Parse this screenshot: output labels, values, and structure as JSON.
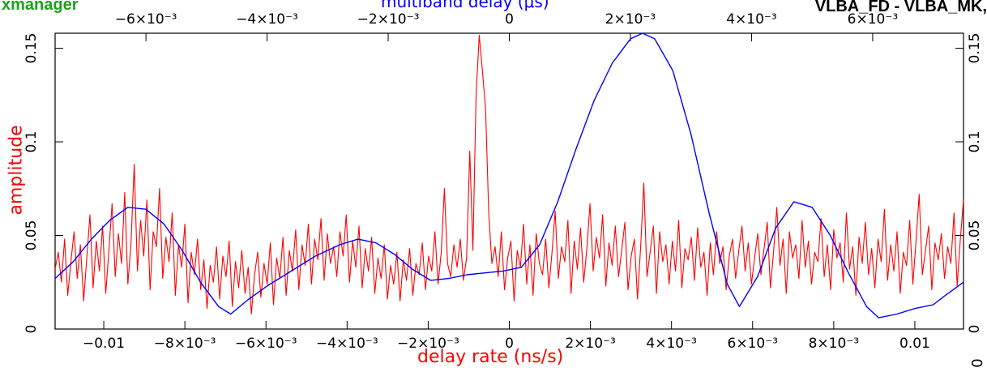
{
  "header": {
    "app_title": "xmanager",
    "baseline_title": "VLBA_FD - VLBA_MK,"
  },
  "chart_data": {
    "type": "line",
    "xlabel": "delay rate (ns/s)",
    "ylabel": "amplitude",
    "top_xlabel": "multiband delay (μs)",
    "xlim": [
      -0.0112,
      0.0112
    ],
    "ylim": [
      0,
      0.158
    ],
    "top_xlim": [
      -0.0075,
      0.0075
    ],
    "x_ticks": [
      {
        "value": -0.01,
        "label": "−0.01"
      },
      {
        "value": -0.008,
        "label": "−8×10⁻³"
      },
      {
        "value": -0.006,
        "label": "−6×10⁻³"
      },
      {
        "value": -0.004,
        "label": "−4×10⁻³"
      },
      {
        "value": -0.002,
        "label": "−2×10⁻³"
      },
      {
        "value": 0,
        "label": "0"
      },
      {
        "value": 0.002,
        "label": "2×10⁻³"
      },
      {
        "value": 0.004,
        "label": "4×10⁻³"
      },
      {
        "value": 0.006,
        "label": "6×10⁻³"
      },
      {
        "value": 0.008,
        "label": "8×10⁻³"
      },
      {
        "value": 0.01,
        "label": "0.01"
      }
    ],
    "top_ticks": [
      {
        "value": -0.006,
        "label": "−6×10⁻³"
      },
      {
        "value": -0.004,
        "label": "−4×10⁻³"
      },
      {
        "value": -0.002,
        "label": "−2×10⁻³"
      },
      {
        "value": 0,
        "label": "0"
      },
      {
        "value": 0.002,
        "label": "2×10⁻³"
      },
      {
        "value": 0.004,
        "label": "4×10⁻³"
      },
      {
        "value": 0.006,
        "label": "6×10⁻³"
      }
    ],
    "y_ticks": [
      {
        "value": 0,
        "label": "0"
      },
      {
        "value": 0.05,
        "label": "0.05"
      },
      {
        "value": 0.1,
        "label": "0.1"
      },
      {
        "value": 0.15,
        "label": "0.15"
      }
    ],
    "right_extra_label": "0",
    "series": [
      {
        "color": "#ff0000",
        "axis": "bottom",
        "x_start": -0.0112,
        "x_end": 0.0112,
        "values": [
          0.032,
          0.041,
          0.025,
          0.048,
          0.018,
          0.036,
          0.052,
          0.027,
          0.045,
          0.015,
          0.038,
          0.061,
          0.022,
          0.047,
          0.031,
          0.055,
          0.019,
          0.042,
          0.067,
          0.028,
          0.051,
          0.035,
          0.073,
          0.024,
          0.046,
          0.088,
          0.031,
          0.058,
          0.039,
          0.069,
          0.021,
          0.052,
          0.044,
          0.075,
          0.027,
          0.049,
          0.036,
          0.062,
          0.018,
          0.045,
          0.033,
          0.056,
          0.014,
          0.041,
          0.029,
          0.048,
          0.021,
          0.037,
          0.011,
          0.034,
          0.025,
          0.044,
          0.016,
          0.039,
          0.028,
          0.047,
          0.012,
          0.036,
          0.022,
          0.042,
          0.019,
          0.033,
          0.008,
          0.029,
          0.041,
          0.017,
          0.035,
          0.024,
          0.046,
          0.013,
          0.038,
          0.027,
          0.049,
          0.018,
          0.042,
          0.031,
          0.053,
          0.021,
          0.045,
          0.034,
          0.056,
          0.024,
          0.048,
          0.037,
          0.059,
          0.026,
          0.051,
          0.035,
          0.044,
          0.028,
          0.052,
          0.039,
          0.061,
          0.025,
          0.047,
          0.033,
          0.055,
          0.022,
          0.043,
          0.031,
          0.049,
          0.019,
          0.038,
          0.027,
          0.045,
          0.016,
          0.034,
          0.024,
          0.041,
          0.015,
          0.037,
          0.026,
          0.043,
          0.018,
          0.035,
          0.029,
          0.046,
          0.021,
          0.039,
          0.031,
          0.052,
          0.024,
          0.041,
          0.075,
          0.035,
          0.028,
          0.045,
          0.033,
          0.048,
          0.026,
          0.038,
          0.095,
          0.042,
          0.125,
          0.157,
          0.138,
          0.118,
          0.062,
          0.035,
          0.044,
          0.028,
          0.052,
          0.021,
          0.038,
          0.047,
          0.015,
          0.042,
          0.033,
          0.056,
          0.024,
          0.045,
          0.018,
          0.051,
          0.035,
          0.029,
          0.048,
          0.022,
          0.041,
          0.063,
          0.027,
          0.044,
          0.036,
          0.058,
          0.019,
          0.047,
          0.032,
          0.054,
          0.025,
          0.043,
          0.067,
          0.031,
          0.049,
          0.038,
          0.061,
          0.023,
          0.046,
          0.034,
          0.055,
          0.028,
          0.042,
          0.057,
          0.021,
          0.039,
          0.048,
          0.016,
          0.044,
          0.078,
          0.028,
          0.041,
          0.055,
          0.019,
          0.052,
          0.036,
          0.045,
          0.024,
          0.047,
          0.031,
          0.058,
          0.022,
          0.043,
          0.037,
          0.049,
          0.026,
          0.054,
          0.033,
          0.041,
          0.018,
          0.046,
          0.029,
          0.052,
          0.035,
          0.044,
          0.021,
          0.039,
          0.048,
          0.027,
          0.042,
          0.055,
          0.031,
          0.046,
          0.024,
          0.038,
          0.051,
          0.029,
          0.043,
          0.057,
          0.022,
          0.041,
          0.065,
          0.034,
          0.048,
          0.019,
          0.052,
          0.038,
          0.045,
          0.027,
          0.058,
          0.033,
          0.047,
          0.024,
          0.041,
          0.036,
          0.059,
          0.028,
          0.045,
          0.021,
          0.053,
          0.038,
          0.046,
          0.025,
          0.062,
          0.032,
          0.044,
          0.018,
          0.049,
          0.035,
          0.057,
          0.029,
          0.043,
          0.022,
          0.048,
          0.036,
          0.064,
          0.026,
          0.045,
          0.031,
          0.052,
          0.019,
          0.041,
          0.034,
          0.058,
          0.024,
          0.047,
          0.072,
          0.029,
          0.042,
          0.055,
          0.021,
          0.046,
          0.037,
          0.051,
          0.027,
          0.044,
          0.035,
          0.062,
          0.023,
          0.048,
          0.069
        ]
      },
      {
        "color": "#0000ff",
        "axis": "top",
        "points": [
          [
            -0.0075,
            0.027
          ],
          [
            -0.0072,
            0.036
          ],
          [
            -0.0069,
            0.048
          ],
          [
            -0.0066,
            0.058
          ],
          [
            -0.0063,
            0.065
          ],
          [
            -0.006,
            0.064
          ],
          [
            -0.0057,
            0.056
          ],
          [
            -0.0054,
            0.042
          ],
          [
            -0.0051,
            0.025
          ],
          [
            -0.0048,
            0.012
          ],
          [
            -0.0046,
            0.008
          ],
          [
            -0.0043,
            0.016
          ],
          [
            -0.004,
            0.023
          ],
          [
            -0.0036,
            0.031
          ],
          [
            -0.0032,
            0.039
          ],
          [
            -0.0028,
            0.045
          ],
          [
            -0.0025,
            0.048
          ],
          [
            -0.0022,
            0.046
          ],
          [
            -0.0019,
            0.04
          ],
          [
            -0.0016,
            0.032
          ],
          [
            -0.0013,
            0.026
          ],
          [
            -0.001,
            0.027
          ],
          [
            -0.0007,
            0.029
          ],
          [
            -0.0004,
            0.03
          ],
          [
            -0.0001,
            0.031
          ],
          [
            0.0002,
            0.033
          ],
          [
            0.0005,
            0.045
          ],
          [
            0.0008,
            0.068
          ],
          [
            0.0011,
            0.096
          ],
          [
            0.0014,
            0.122
          ],
          [
            0.0017,
            0.142
          ],
          [
            0.002,
            0.155
          ],
          [
            0.0022,
            0.158
          ],
          [
            0.0024,
            0.155
          ],
          [
            0.0027,
            0.138
          ],
          [
            0.003,
            0.104
          ],
          [
            0.0033,
            0.062
          ],
          [
            0.0036,
            0.024
          ],
          [
            0.0038,
            0.012
          ],
          [
            0.0041,
            0.028
          ],
          [
            0.0044,
            0.054
          ],
          [
            0.0047,
            0.068
          ],
          [
            0.005,
            0.065
          ],
          [
            0.0053,
            0.05
          ],
          [
            0.0056,
            0.03
          ],
          [
            0.0059,
            0.012
          ],
          [
            0.0061,
            0.006
          ],
          [
            0.0064,
            0.008
          ],
          [
            0.0067,
            0.011
          ],
          [
            0.007,
            0.013
          ],
          [
            0.0072,
            0.018
          ],
          [
            0.0075,
            0.025
          ]
        ]
      }
    ]
  }
}
